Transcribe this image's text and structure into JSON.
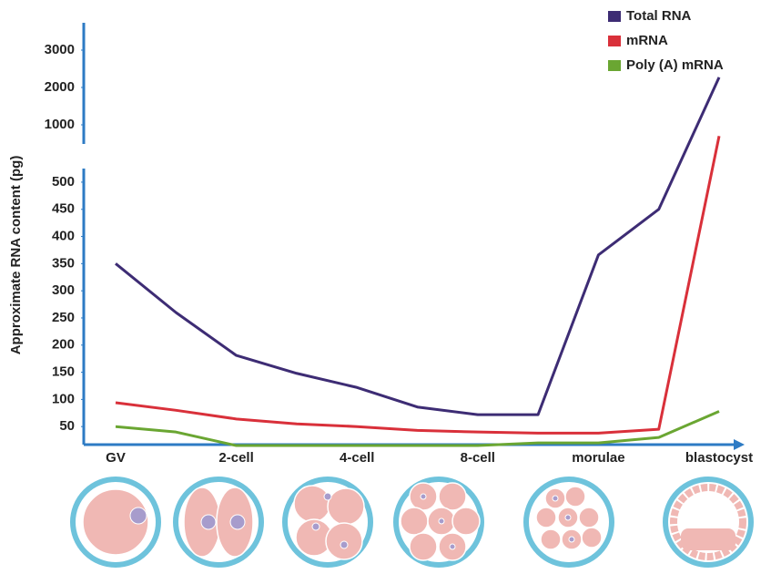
{
  "chart_data": {
    "type": "line",
    "y_label": "Approximate RNA content (pg)",
    "categories": [
      "GV",
      null,
      "2-cell",
      null,
      "4-cell",
      null,
      "8-cell",
      null,
      "morulae",
      null,
      "blastocyst"
    ],
    "y_segments": [
      {
        "ylim": [
          0,
          520
        ],
        "yticks": [
          50,
          100,
          150,
          200,
          250,
          300,
          350,
          400,
          450,
          500
        ]
      },
      {
        "ylim": [
          600,
          3600
        ],
        "yticks": [
          1000,
          2000,
          3000
        ]
      }
    ],
    "legend": "top-right",
    "series": [
      {
        "name": "Total RNA",
        "color": "#3d2c74",
        "values": [
          350,
          260,
          181,
          148,
          122,
          86,
          72,
          72,
          366,
          450,
          2270
        ]
      },
      {
        "name": "mRNA",
        "color": "#d9303a",
        "values": [
          94,
          80,
          64,
          55,
          50,
          43,
          40,
          38,
          38,
          45,
          700
        ]
      },
      {
        "name": "Poly (A) mRNA",
        "color": "#6aa632",
        "values": [
          50,
          40,
          15,
          15,
          15,
          15,
          15,
          20,
          20,
          30,
          78
        ]
      }
    ]
  }
}
